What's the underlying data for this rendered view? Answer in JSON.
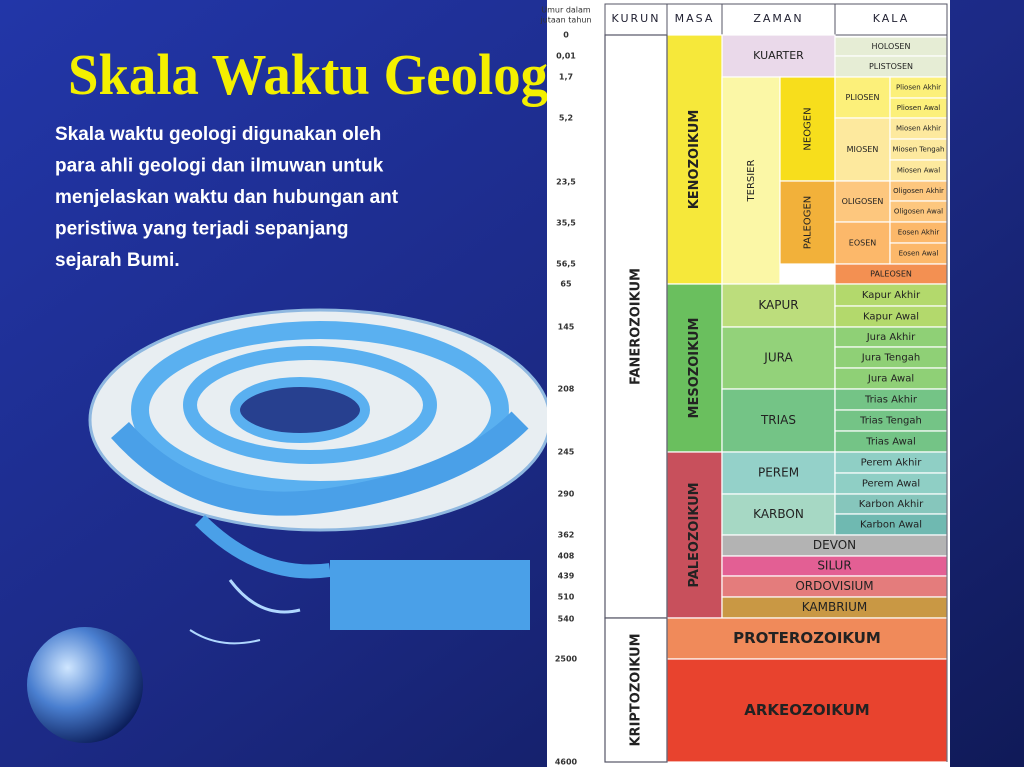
{
  "header": {
    "title": "Skala Waktu Geolog",
    "description": [
      "Skala waktu geologi digunakan oleh",
      "para ahli geologi dan ilmuwan untuk",
      "menjelaskan waktu dan hubungan ant",
      "peristiwa yang terjadi sepanjang",
      "sejarah Bumi."
    ]
  },
  "table": {
    "age_header": [
      "Umur dalam",
      "jutaan tahun"
    ],
    "columns": [
      "KURUN",
      "MASA",
      "ZAMAN",
      "KALA"
    ],
    "ages": [
      "0",
      "0,01",
      "1,7",
      "5,2",
      "23,5",
      "35,5",
      "56,5",
      "65",
      "145",
      "208",
      "245",
      "290",
      "362",
      "408",
      "439",
      "510",
      "540",
      "2500",
      "4600"
    ],
    "cells": [
      "KUARTER",
      "HOLOSEN",
      "PLISTOSEN",
      "KENOZOIKUM",
      "TERSIER",
      "NEOGEN",
      "PALEOGEN",
      "PLIOSEN",
      "Pliosen Akhir",
      "Pliosen Awal",
      "MIOSEN",
      "Miosen Akhir",
      "Miosen Tengah",
      "Miosen Awal",
      "OLIGOSEN",
      "Oligosen Akhir",
      "Oligosen Awal",
      "EOSEN",
      "Eosen Akhir",
      "Eosen Awal",
      "PALEOSEN",
      "MESOZOIKUM",
      "KAPUR",
      "Kapur Akhir",
      "Kapur Awal",
      "JURA",
      "Jura Akhir",
      "Jura Tengah",
      "Jura Awal",
      "TRIAS",
      "Trias Akhir",
      "Trias Tengah",
      "Trias Awal",
      "PALEOZOIKUM",
      "PEREM",
      "Perem Akhir",
      "Perem Awal",
      "KARBON",
      "Karbon Akhir",
      "Karbon Awal",
      "DEVON",
      "SILUR",
      "ORDOVISIUM",
      "KAMBRIUM",
      "FANEROZOIKUM",
      "PROTEROZOIKUM",
      "ARKEOZOIKUM",
      "KRIPTOZOIKUM"
    ]
  }
}
